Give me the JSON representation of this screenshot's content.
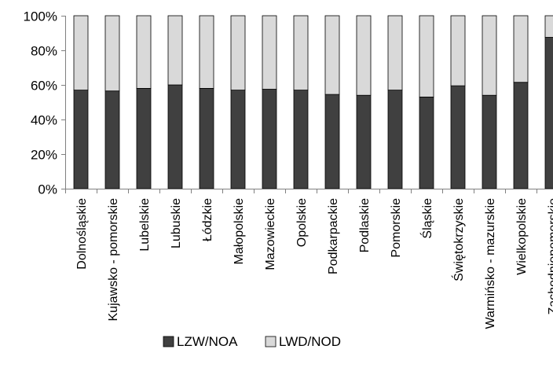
{
  "chart_data": {
    "type": "bar",
    "stacked": true,
    "normalized": true,
    "categories": [
      "Dolnośląskie",
      "Kujawsko - pomorskie",
      "Lubelskie",
      "Lubuskie",
      "Łódzkie",
      "Małopolskie",
      "Mazowieckie",
      "Opolskie",
      "Podkarpackie",
      "Podlaskie",
      "Pomorskie",
      "Śląskie",
      "Świętokrzyskie",
      "Warmińsko - mazurskie",
      "Wielkopolskie",
      "Zachodniopomorskie"
    ],
    "series": [
      {
        "name": "LZW/NOA",
        "color": "#404040",
        "values": [
          57,
          56.5,
          58,
          60,
          58,
          57,
          57.5,
          57,
          54.5,
          54,
          57,
          53,
          59.5,
          54,
          61.5,
          87.5
        ]
      },
      {
        "name": "LWD/NOD",
        "color": "#d9d9d9",
        "values": [
          43,
          43.5,
          42,
          40,
          42,
          43,
          42.5,
          43,
          45.5,
          46,
          43,
          47,
          40.5,
          46,
          38.5,
          12.5
        ]
      }
    ],
    "ylim": [
      0,
      100
    ],
    "yticks": [
      0,
      20,
      40,
      60,
      80,
      100
    ],
    "ytick_suffix": "%",
    "grid": false,
    "legend": "bottom"
  }
}
